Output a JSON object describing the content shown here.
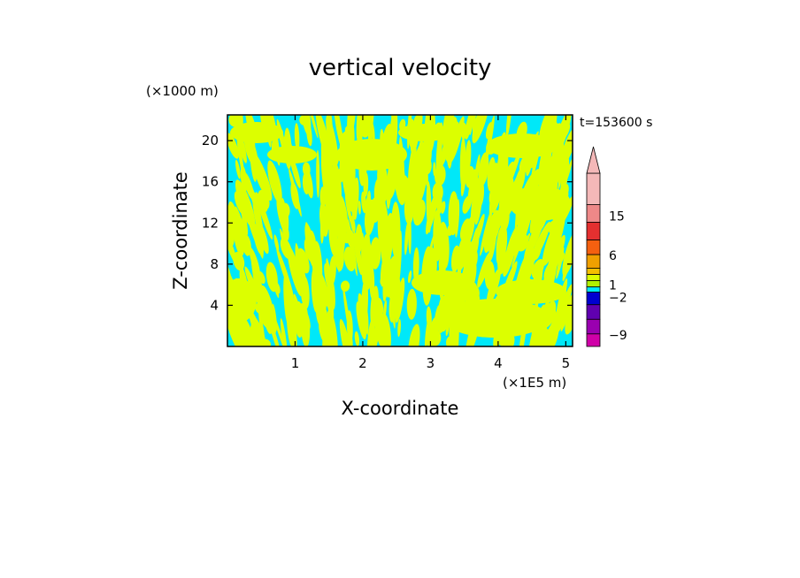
{
  "chart_data": {
    "type": "heatmap",
    "title": "vertical velocity",
    "xlabel": "X-coordinate",
    "ylabel": "Z-coordinate",
    "x_unit": "(×1E5 m)",
    "y_unit": "(×1000 m)",
    "time_label": "t=153600 s",
    "xlim": [
      0,
      5.1
    ],
    "ylim": [
      0,
      22.5
    ],
    "x_ticks": [
      1,
      2,
      3,
      4,
      5
    ],
    "y_ticks": [
      4,
      8,
      12,
      16,
      20
    ],
    "background_color": "#00e8f8",
    "pattern_color": "#dcff00",
    "colorbar": {
      "levels": [
        -9,
        -2,
        1,
        6,
        15
      ],
      "level_labels": [
        "15",
        "6",
        "1",
        "−2",
        "−9"
      ],
      "colors_top_to_bottom": [
        "#f4b8b8",
        "#ee8888",
        "#e43030",
        "#f46010",
        "#f0a000",
        "#f4c000",
        "#dcff00",
        "#b0f000",
        "#00e8f8",
        "#0000d0",
        "#6000b0",
        "#9a00b0",
        "#d000a8"
      ]
    }
  }
}
